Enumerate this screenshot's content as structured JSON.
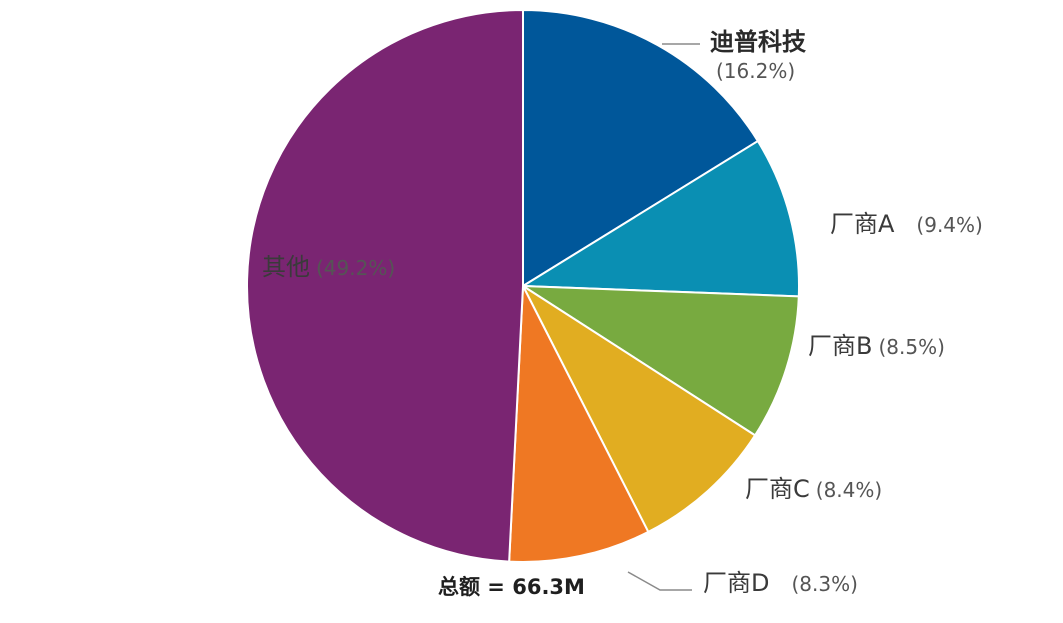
{
  "chart_data": {
    "type": "pie",
    "total_label": "总额 = 66.3M",
    "slices": [
      {
        "name": "迪普科技",
        "percent_text": "(16.2%)",
        "value": 16.2,
        "color": "#00579a"
      },
      {
        "name": "厂商A",
        "percent_text": "(9.4%)",
        "value": 9.4,
        "color": "#0a8fb3"
      },
      {
        "name": "厂商B",
        "percent_text": "(8.5%)",
        "value": 8.5,
        "color": "#78aa40"
      },
      {
        "name": "厂商C",
        "percent_text": "(8.4%)",
        "value": 8.4,
        "color": "#e1ad21"
      },
      {
        "name": "厂商D",
        "percent_text": "(8.3%)",
        "value": 8.3,
        "color": "#ef7823"
      },
      {
        "name": "其他",
        "percent_text": "(49.2%)",
        "value": 49.2,
        "color": "#7a2572"
      }
    ]
  }
}
